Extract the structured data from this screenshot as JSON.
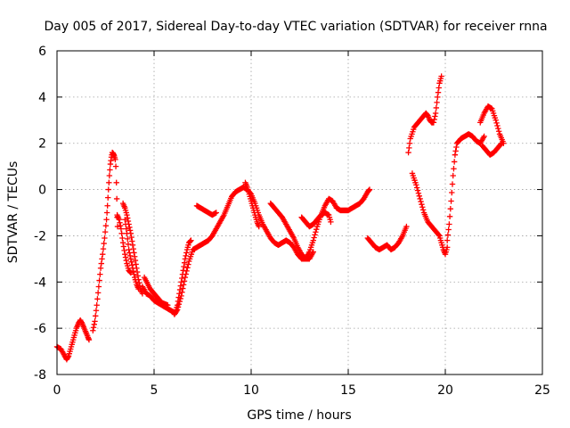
{
  "chart_data": {
    "type": "scatter",
    "title": "Day 005 of 2017, Sidereal Day-to-day VTEC variation (SDTVAR) for receiver rnna",
    "xlabel": "GPS time / hours",
    "ylabel": "SDTVAR / TECUs",
    "xlim": [
      0,
      25
    ],
    "ylim": [
      -8,
      6
    ],
    "xticks": [
      0,
      5,
      10,
      15,
      20,
      25
    ],
    "yticks": [
      -8,
      -6,
      -4,
      -2,
      0,
      2,
      4,
      6
    ],
    "grid": true,
    "marker": "plus",
    "color": "#ff0000",
    "series": [
      {
        "segments": [
          [
            [
              0.0,
              -6.8
            ],
            [
              0.2,
              -6.9
            ],
            [
              0.4,
              -7.2
            ],
            [
              0.5,
              -7.35
            ],
            [
              0.6,
              -7.2
            ],
            [
              0.7,
              -6.9
            ],
            [
              0.8,
              -6.6
            ],
            [
              0.9,
              -6.3
            ],
            [
              1.0,
              -6.0
            ],
            [
              1.1,
              -5.8
            ],
            [
              1.2,
              -5.65
            ],
            [
              1.3,
              -5.8
            ],
            [
              1.4,
              -6.0
            ],
            [
              1.5,
              -6.2
            ],
            [
              1.6,
              -6.4
            ],
            [
              1.65,
              -6.5
            ]
          ],
          [
            [
              1.85,
              -6.1
            ],
            [
              1.95,
              -5.7
            ],
            [
              2.05,
              -5.0
            ],
            [
              2.15,
              -4.2
            ],
            [
              2.25,
              -3.4
            ],
            [
              2.35,
              -2.8
            ],
            [
              2.45,
              -2.1
            ],
            [
              2.55,
              -1.3
            ],
            [
              2.6,
              -0.7
            ],
            [
              2.65,
              0.0
            ],
            [
              2.7,
              0.6
            ],
            [
              2.75,
              1.1
            ],
            [
              2.8,
              1.4
            ],
            [
              2.85,
              1.6
            ],
            [
              2.9,
              1.55
            ],
            [
              2.95,
              1.45
            ],
            [
              3.0,
              1.3
            ],
            [
              3.03,
              1.0
            ],
            [
              3.06,
              0.3
            ],
            [
              3.08,
              -0.4
            ],
            [
              3.1,
              -1.2
            ],
            [
              3.12,
              -1.6
            ]
          ],
          [
            [
              3.1,
              -1.1
            ],
            [
              3.2,
              -1.3
            ],
            [
              3.3,
              -1.7
            ],
            [
              3.4,
              -2.3
            ],
            [
              3.5,
              -2.8
            ],
            [
              3.6,
              -3.2
            ],
            [
              3.7,
              -3.5
            ],
            [
              3.8,
              -3.6
            ]
          ],
          [
            [
              3.4,
              -0.6
            ],
            [
              3.5,
              -0.8
            ],
            [
              3.6,
              -1.1
            ],
            [
              3.7,
              -1.5
            ],
            [
              3.8,
              -1.9
            ],
            [
              3.9,
              -2.4
            ],
            [
              4.0,
              -2.9
            ],
            [
              4.1,
              -3.4
            ],
            [
              4.2,
              -3.9
            ],
            [
              4.3,
              -4.3
            ],
            [
              4.4,
              -4.5
            ]
          ],
          [
            [
              3.5,
              -1.3
            ],
            [
              3.6,
              -1.9
            ],
            [
              3.7,
              -2.6
            ],
            [
              3.8,
              -3.0
            ],
            [
              3.9,
              -3.4
            ],
            [
              4.0,
              -3.8
            ],
            [
              4.1,
              -4.1
            ],
            [
              4.2,
              -4.3
            ]
          ],
          [
            [
              4.4,
              -4.2
            ],
            [
              4.6,
              -4.5
            ],
            [
              4.8,
              -4.6
            ],
            [
              5.0,
              -4.8
            ],
            [
              5.2,
              -4.9
            ],
            [
              5.4,
              -5.0
            ],
            [
              5.6,
              -5.1
            ],
            [
              5.8,
              -5.2
            ],
            [
              6.0,
              -5.3
            ],
            [
              6.05,
              -5.4
            ],
            [
              6.2,
              -5.2
            ],
            [
              6.4,
              -4.6
            ],
            [
              6.6,
              -3.8
            ],
            [
              6.8,
              -3.1
            ],
            [
              7.0,
              -2.6
            ],
            [
              7.2,
              -2.5
            ],
            [
              7.4,
              -2.4
            ],
            [
              7.6,
              -2.3
            ],
            [
              7.8,
              -2.2
            ],
            [
              8.0,
              -2.0
            ],
            [
              8.2,
              -1.7
            ],
            [
              8.4,
              -1.4
            ],
            [
              8.6,
              -1.1
            ],
            [
              8.8,
              -0.7
            ],
            [
              9.0,
              -0.3
            ],
            [
              9.2,
              -0.1
            ],
            [
              9.4,
              0.0
            ],
            [
              9.6,
              0.1
            ],
            [
              9.8,
              0.0
            ],
            [
              10.0,
              -0.2
            ],
            [
              10.2,
              -0.6
            ],
            [
              10.4,
              -1.1
            ],
            [
              10.6,
              -1.5
            ],
            [
              10.8,
              -1.8
            ],
            [
              11.0,
              -2.1
            ],
            [
              11.2,
              -2.3
            ],
            [
              11.4,
              -2.4
            ],
            [
              11.6,
              -2.3
            ],
            [
              11.8,
              -2.2
            ],
            [
              12.0,
              -2.3
            ],
            [
              12.2,
              -2.5
            ],
            [
              12.4,
              -2.8
            ],
            [
              12.6,
              -3.0
            ],
            [
              12.8,
              -3.0
            ],
            [
              13.0,
              -2.7
            ],
            [
              13.2,
              -2.2
            ],
            [
              13.4,
              -1.6
            ],
            [
              13.6,
              -1.1
            ],
            [
              13.8,
              -0.7
            ],
            [
              14.0,
              -0.4
            ],
            [
              14.2,
              -0.5
            ],
            [
              14.4,
              -0.8
            ],
            [
              14.6,
              -0.9
            ],
            [
              14.8,
              -0.9
            ],
            [
              15.0,
              -0.9
            ],
            [
              15.2,
              -0.8
            ],
            [
              15.4,
              -0.7
            ],
            [
              15.6,
              -0.6
            ],
            [
              15.8,
              -0.4
            ],
            [
              16.0,
              -0.1
            ],
            [
              16.1,
              0.0
            ]
          ],
          [
            [
              6.1,
              -5.3
            ],
            [
              6.2,
              -5.0
            ],
            [
              6.3,
              -4.5
            ],
            [
              6.4,
              -4.0
            ],
            [
              6.5,
              -3.5
            ],
            [
              6.6,
              -3.0
            ],
            [
              6.7,
              -2.6
            ],
            [
              6.8,
              -2.3
            ],
            [
              6.9,
              -2.2
            ]
          ],
          [
            [
              4.5,
              -3.8
            ],
            [
              4.8,
              -4.3
            ],
            [
              5.1,
              -4.6
            ],
            [
              5.4,
              -4.9
            ],
            [
              5.7,
              -5.0
            ]
          ],
          [
            [
              7.2,
              -0.7
            ],
            [
              7.4,
              -0.8
            ],
            [
              7.6,
              -0.9
            ],
            [
              7.8,
              -1.0
            ],
            [
              8.0,
              -1.1
            ],
            [
              8.2,
              -1.0
            ]
          ],
          [
            [
              9.7,
              0.3
            ],
            [
              9.8,
              0.1
            ],
            [
              9.9,
              -0.2
            ],
            [
              10.0,
              -0.5
            ],
            [
              10.1,
              -0.8
            ],
            [
              10.2,
              -1.1
            ],
            [
              10.3,
              -1.4
            ],
            [
              10.4,
              -1.6
            ]
          ],
          [
            [
              11.0,
              -0.6
            ],
            [
              11.2,
              -0.8
            ],
            [
              11.4,
              -1.0
            ],
            [
              11.6,
              -1.2
            ],
            [
              11.8,
              -1.5
            ],
            [
              12.0,
              -1.8
            ],
            [
              12.2,
              -2.1
            ],
            [
              12.4,
              -2.5
            ],
            [
              12.6,
              -2.8
            ],
            [
              12.8,
              -3.0
            ],
            [
              13.0,
              -3.0
            ],
            [
              13.2,
              -2.7
            ]
          ],
          [
            [
              12.6,
              -1.2
            ],
            [
              12.8,
              -1.4
            ],
            [
              13.0,
              -1.6
            ],
            [
              13.2,
              -1.5
            ],
            [
              13.4,
              -1.3
            ],
            [
              13.6,
              -1.1
            ],
            [
              13.8,
              -1.0
            ],
            [
              14.0,
              -1.1
            ],
            [
              14.1,
              -1.4
            ]
          ],
          [
            [
              16.0,
              -2.1
            ],
            [
              16.2,
              -2.3
            ],
            [
              16.4,
              -2.5
            ],
            [
              16.6,
              -2.6
            ],
            [
              16.8,
              -2.5
            ],
            [
              17.0,
              -2.4
            ],
            [
              17.2,
              -2.6
            ],
            [
              17.4,
              -2.5
            ],
            [
              17.6,
              -2.3
            ],
            [
              17.8,
              -2.0
            ],
            [
              18.0,
              -1.6
            ]
          ],
          [
            [
              18.1,
              1.6
            ],
            [
              18.2,
              2.2
            ],
            [
              18.4,
              2.7
            ],
            [
              18.6,
              2.9
            ],
            [
              18.8,
              3.1
            ],
            [
              19.0,
              3.3
            ],
            [
              19.1,
              3.2
            ],
            [
              19.2,
              3.0
            ],
            [
              19.3,
              2.9
            ],
            [
              19.4,
              2.9
            ],
            [
              19.5,
              3.3
            ],
            [
              19.6,
              4.0
            ],
            [
              19.7,
              4.6
            ],
            [
              19.8,
              4.9
            ]
          ],
          [
            [
              18.3,
              0.7
            ],
            [
              18.5,
              0.2
            ],
            [
              18.7,
              -0.4
            ],
            [
              18.9,
              -1.0
            ],
            [
              19.1,
              -1.4
            ],
            [
              19.3,
              -1.6
            ],
            [
              19.5,
              -1.8
            ],
            [
              19.7,
              -2.0
            ],
            [
              19.8,
              -2.3
            ],
            [
              19.9,
              -2.6
            ],
            [
              20.0,
              -2.8
            ],
            [
              20.1,
              -2.5
            ]
          ],
          [
            [
              20.1,
              -2.2
            ],
            [
              20.2,
              -1.5
            ],
            [
              20.3,
              -0.5
            ],
            [
              20.4,
              0.6
            ],
            [
              20.5,
              1.5
            ],
            [
              20.6,
              2.0
            ],
            [
              20.8,
              2.2
            ],
            [
              21.0,
              2.3
            ],
            [
              21.2,
              2.4
            ],
            [
              21.4,
              2.3
            ],
            [
              21.6,
              2.1
            ],
            [
              21.8,
              2.0
            ],
            [
              22.0,
              2.3
            ]
          ],
          [
            [
              21.8,
              2.9
            ],
            [
              22.0,
              3.3
            ],
            [
              22.2,
              3.6
            ],
            [
              22.4,
              3.5
            ],
            [
              22.6,
              3.0
            ],
            [
              22.8,
              2.4
            ],
            [
              23.0,
              2.0
            ]
          ],
          [
            [
              21.9,
              1.9
            ],
            [
              22.1,
              1.7
            ],
            [
              22.3,
              1.5
            ],
            [
              22.5,
              1.6
            ],
            [
              22.7,
              1.8
            ],
            [
              22.9,
              2.0
            ]
          ]
        ]
      }
    ]
  }
}
